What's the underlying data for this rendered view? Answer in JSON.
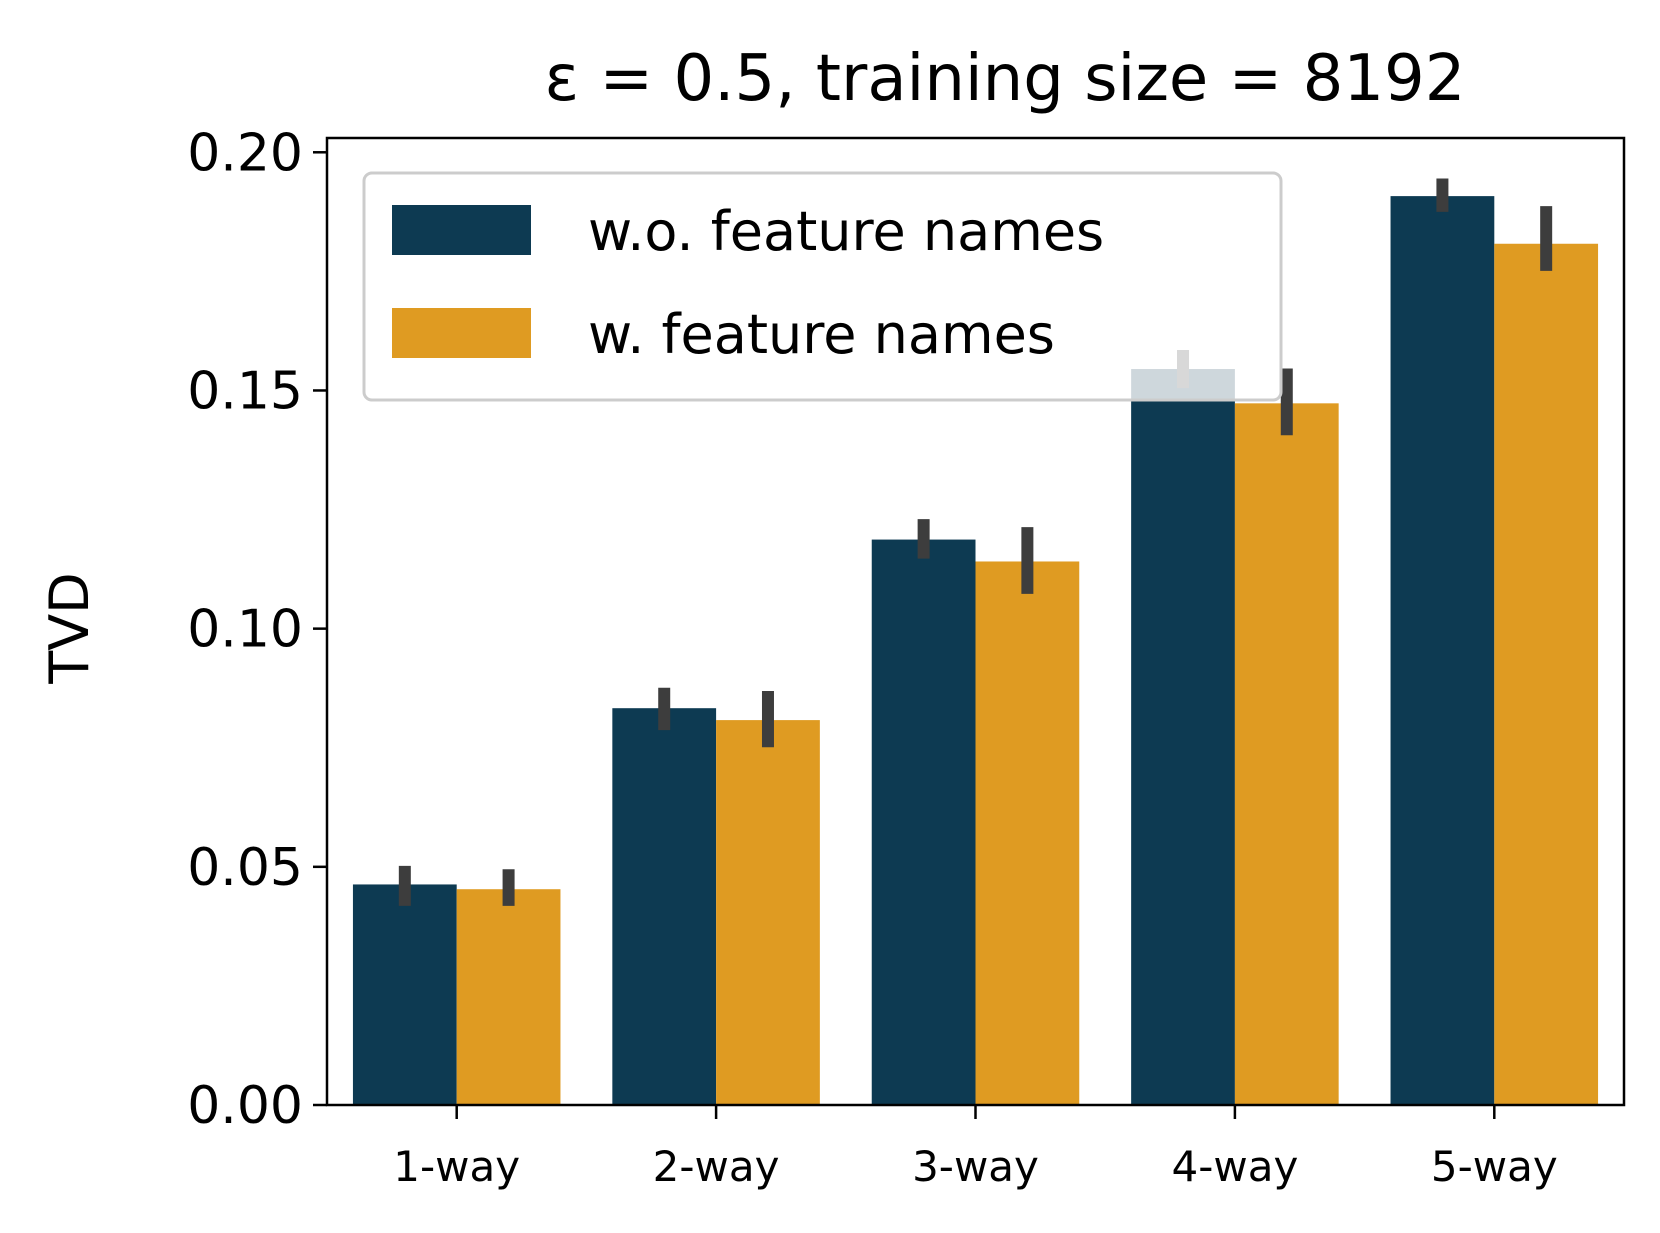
{
  "chart_data": {
    "type": "bar",
    "title": "ε = 0.5, training size = 8192",
    "xlabel": "",
    "ylabel": "TVD",
    "ylim": [
      0,
      0.203
    ],
    "yticks": [
      "0.00",
      "0.05",
      "0.10",
      "0.15",
      "0.20"
    ],
    "categories": [
      "1-way",
      "2-way",
      "3-way",
      "4-way",
      "5-way"
    ],
    "series": [
      {
        "name": "w.o. feature names",
        "color": "#0d3a52",
        "values": [
          0.0463,
          0.0833,
          0.1187,
          0.1545,
          0.1908
        ],
        "err_low": [
          0.0418,
          0.0787,
          0.1147,
          0.1505,
          0.1875
        ],
        "err_high": [
          0.0502,
          0.0876,
          0.123,
          0.1585,
          0.1945
        ]
      },
      {
        "name": "w. feature names",
        "color": "#df9b22",
        "values": [
          0.0453,
          0.0808,
          0.1141,
          0.1473,
          0.1808
        ],
        "err_low": [
          0.0418,
          0.0751,
          0.1073,
          0.1406,
          0.1751
        ],
        "err_high": [
          0.0495,
          0.0869,
          0.1213,
          0.1546,
          0.1887
        ]
      }
    ],
    "legend_position": "upper-left",
    "grid": false,
    "error_bar_color": "#3d3d3d"
  }
}
